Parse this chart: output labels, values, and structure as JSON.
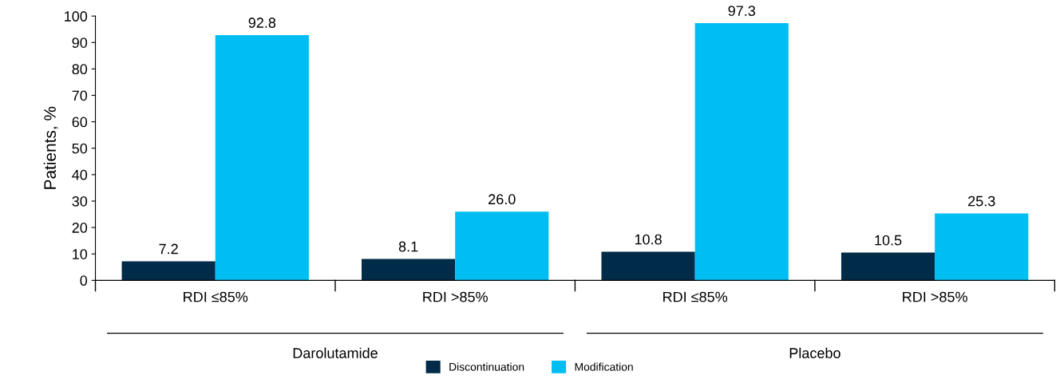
{
  "chart_data": {
    "type": "bar",
    "ylabel": "Patients, %",
    "categories": [
      "RDI ≤85%",
      "RDI >85%",
      "RDI ≤85%",
      "RDI >85%"
    ],
    "series": [
      {
        "name": "Discontinuation",
        "color": "#002b49",
        "values": [
          7.2,
          8.1,
          10.8,
          10.5
        ]
      },
      {
        "name": "Modification",
        "color": "#00bef2",
        "values": [
          92.8,
          26.0,
          97.3,
          25.3
        ]
      }
    ],
    "value_labels": [
      [
        "7.2",
        "8.1",
        "10.8",
        "10.5"
      ],
      [
        "92.8",
        "26.0",
        "97.3",
        "25.3"
      ]
    ],
    "annotations": [
      "Darolutamide",
      "Placebo"
    ],
    "ylim": [
      0,
      100
    ],
    "yticks": [
      0,
      10,
      20,
      30,
      40,
      50,
      60,
      70,
      80,
      90,
      100
    ],
    "grid": false,
    "legend": "bottom"
  }
}
